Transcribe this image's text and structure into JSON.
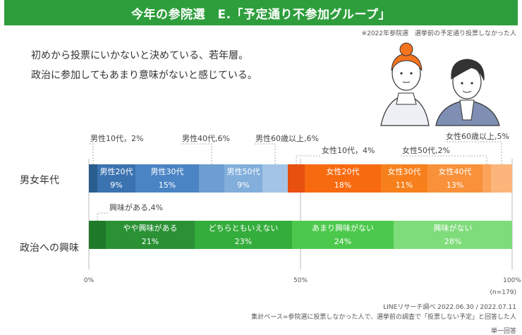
{
  "header": {
    "title": "今年の参院選　E.「予定通り不参加グループ」",
    "note": "※2022年参院選　選挙前の予定通り投票しなかった人"
  },
  "description": {
    "line1": "初めから投票にいかないと決めている、若年層。",
    "line2": "政治に参加してもあまり意味がないと感じている。"
  },
  "chart_data": {
    "type": "bar",
    "orientation": "horizontal-stacked-100",
    "xlim": [
      0,
      100
    ],
    "x_ticks": [
      "0%",
      "50%",
      "100%"
    ],
    "n_label": "(n=179)",
    "rows": [
      {
        "label": "男女年代",
        "segments": [
          {
            "name": "男性10代",
            "value": 2,
            "color": "#2a5d8f",
            "label": "",
            "callout": "男性10代，2%"
          },
          {
            "name": "男性20代",
            "value": 9,
            "color": "#3b72b0",
            "label": "9%"
          },
          {
            "name": "男性30代",
            "value": 15,
            "color": "#4a84c4",
            "label": "15%"
          },
          {
            "name": "男性40代",
            "value": 6,
            "color": "#6d9dd1",
            "label": "",
            "callout": "男性40代,6%"
          },
          {
            "name": "男性50代",
            "value": 9,
            "color": "#82aedb",
            "label": "9%"
          },
          {
            "name": "男性60歳以上",
            "value": 6,
            "color": "#a3c4e6",
            "label": "",
            "callout": "男性60歳以上,6%"
          },
          {
            "name": "女性10代",
            "value": 4,
            "color": "#e8500f",
            "label": "",
            "callout": "女性10代，4%"
          },
          {
            "name": "女性20代",
            "value": 18,
            "color": "#f86a10",
            "label": "18%"
          },
          {
            "name": "女性30代",
            "value": 11,
            "color": "#f7801c",
            "label": "11%"
          },
          {
            "name": "女性40代",
            "value": 13,
            "color": "#f9913a",
            "label": "13%"
          },
          {
            "name": "女性50代",
            "value": 2,
            "color": "#fba35a",
            "label": "",
            "callout": "女性50代,2%"
          },
          {
            "name": "女性60歳以上",
            "value": 5,
            "color": "#fcb57a",
            "label": "",
            "callout": "女性60歳以上,5%"
          }
        ]
      },
      {
        "label": "政治への興味",
        "segments": [
          {
            "name": "興味がある",
            "value": 4,
            "color": "#1f7a2a",
            "label": "",
            "callout": "興味がある,4%"
          },
          {
            "name": "やや興味がある",
            "value": 21,
            "color": "#2a9135",
            "label": "21%"
          },
          {
            "name": "どちらともいえない",
            "value": 23,
            "color": "#34ad3c",
            "label": "23%"
          },
          {
            "name": "あまり興味がない",
            "value": 24,
            "color": "#4cc94c",
            "label": "24%"
          },
          {
            "name": "興味がない",
            "value": 28,
            "color": "#7fdc7a",
            "label": "28%"
          }
        ]
      }
    ]
  },
  "footer": {
    "source": "LINEリサーチ調べ 2022.06.30 / 2022.07.11",
    "base": "集計ベース=参院選に投票しなかった人で、選挙前の調査で「投票しない予定」と回答した人",
    "answer_type": "単一回答"
  }
}
